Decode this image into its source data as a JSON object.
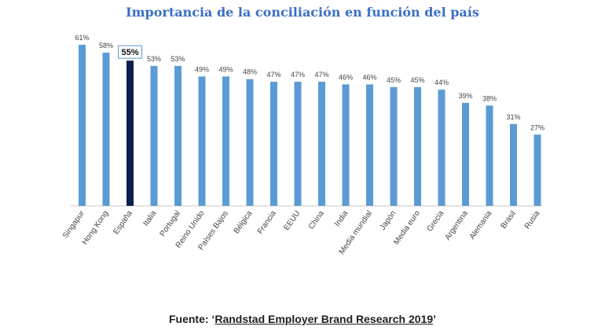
{
  "chart_data": {
    "type": "bar",
    "title": "Importancia de la conciliación en función del país",
    "categories": [
      "Singapur",
      "Hong Kong",
      "España",
      "Italia",
      "Portugal",
      "Reino Unido",
      "Países Bajos",
      "Bélgica",
      "Francia",
      "EEUU",
      "China",
      "India",
      "Media mundial",
      "Japón",
      "Media euro",
      "Grecia",
      "Argentina",
      "Alemania",
      "Brasil",
      "Rusia"
    ],
    "values": [
      61,
      58,
      55,
      53,
      53,
      49,
      49,
      48,
      47,
      47,
      47,
      46,
      46,
      45,
      45,
      44,
      39,
      38,
      31,
      27
    ],
    "value_labels": [
      "61%",
      "58%",
      "55%",
      "53%",
      "53%",
      "49%",
      "49%",
      "48%",
      "47%",
      "47%",
      "47%",
      "46%",
      "46%",
      "45%",
      "45%",
      "44%",
      "39%",
      "38%",
      "31%",
      "27%"
    ],
    "highlight_category": "España",
    "xlabel": "",
    "ylabel": "",
    "ylim": [
      0,
      61
    ],
    "grid": false,
    "legend": "none",
    "colors": {
      "bar": "#5b9bd5",
      "highlight": "#0d1f4f",
      "highlight_box": "#5b9bd5",
      "baseline": "#c9c9c9"
    }
  },
  "source": {
    "prefix": "Fuente: ‘",
    "name": "Randstad Employer Brand Research 2019",
    "suffix": "’"
  }
}
